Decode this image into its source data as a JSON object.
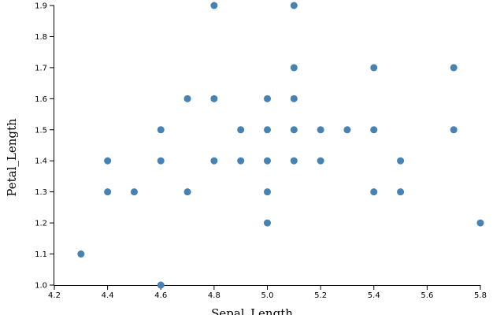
{
  "chart_data": {
    "type": "scatter",
    "x_label": "Sepal_Length",
    "y_label": "Petal_Length",
    "color": "#4682b4",
    "xlim": [
      4.2,
      5.8
    ],
    "ylim": [
      1.0,
      1.9
    ],
    "xticks": [
      4.2,
      4.4,
      4.6,
      4.8,
      {
        "value": 5,
        "label": "5.0"
      },
      5.2,
      5.4,
      5.6,
      5.8
    ],
    "yticks": [
      {
        "value": 1,
        "label": "1.0"
      },
      1.1,
      1.2,
      1.3,
      1.4,
      1.5,
      1.6,
      1.7,
      1.8,
      1.9
    ],
    "x": [
      4.3,
      4.4,
      4.4,
      4.5,
      4.6,
      4.6,
      4.6,
      4.7,
      4.7,
      4.8,
      4.8,
      4.8,
      4.9,
      4.9,
      5.0,
      5.0,
      5.0,
      5.0,
      5.0,
      5.1,
      5.1,
      5.1,
      5.1,
      5.1,
      5.2,
      5.2,
      5.3,
      5.4,
      5.4,
      5.4,
      5.5,
      5.5,
      5.7,
      5.7,
      5.8
    ],
    "values": [
      1.1,
      1.4,
      1.3,
      1.3,
      1.5,
      1.4,
      1.0,
      1.6,
      1.3,
      1.9,
      1.6,
      1.4,
      1.5,
      1.4,
      1.6,
      1.5,
      1.4,
      1.3,
      1.2,
      1.9,
      1.7,
      1.6,
      1.5,
      1.4,
      1.5,
      1.4,
      1.5,
      1.7,
      1.5,
      1.3,
      1.4,
      1.3,
      1.7,
      1.5,
      1.2
    ]
  }
}
